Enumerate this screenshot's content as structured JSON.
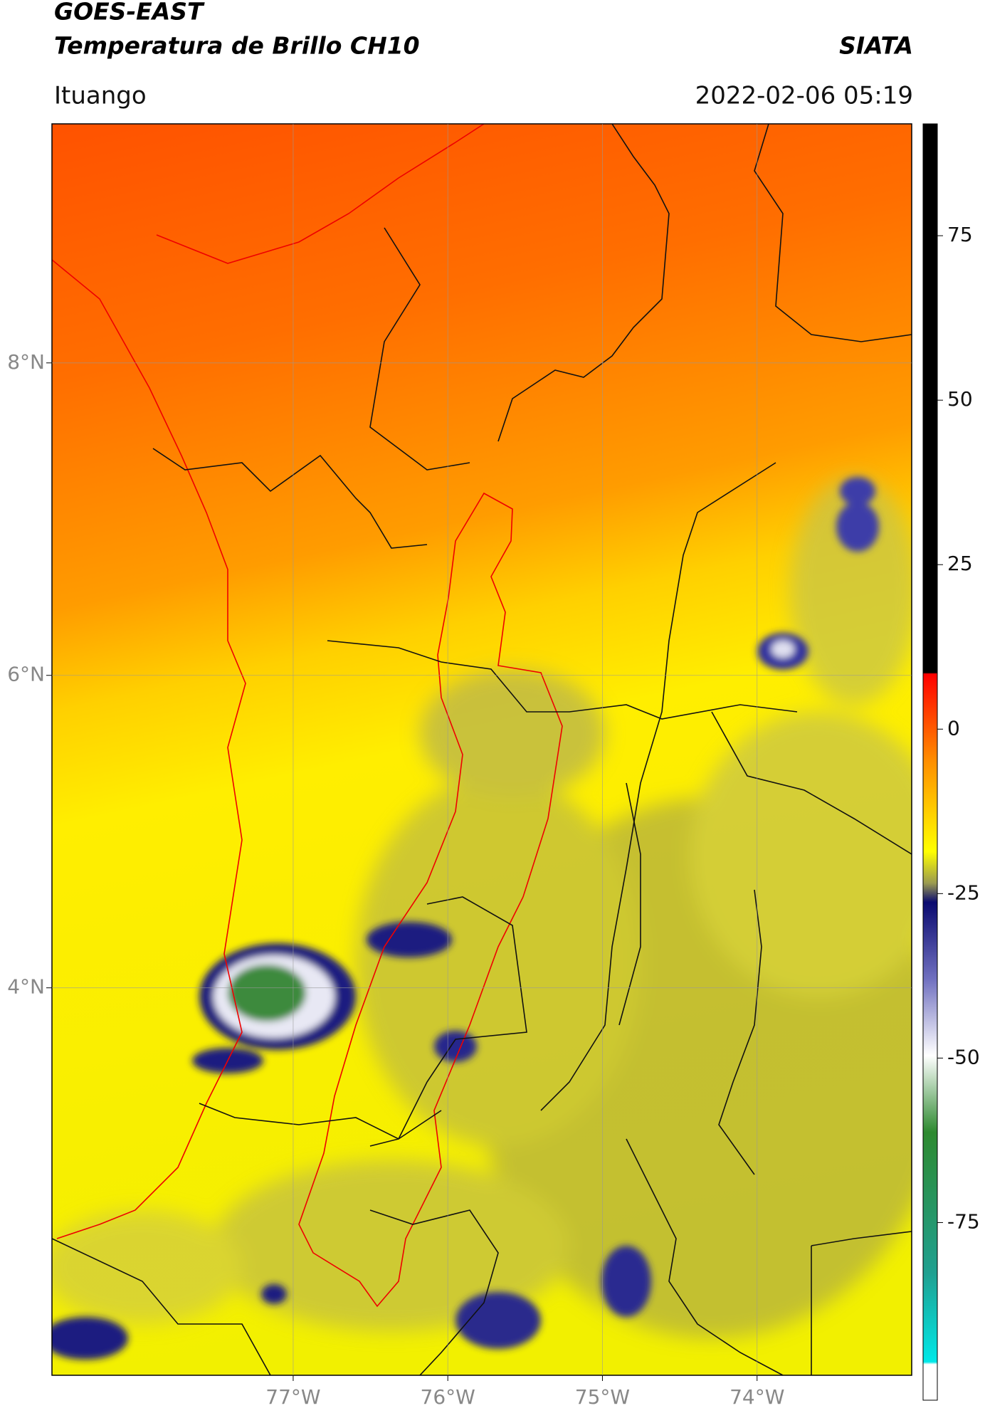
{
  "header": {
    "title_line1": "GOES-EAST",
    "title_line2": "Temperatura de Brillo CH10",
    "brand": "SIATA",
    "location": "Ituango",
    "datetime": "2022-02-06 05:19"
  },
  "map": {
    "xlim": [
      -78.56,
      -73.0
    ],
    "ylim": [
      1.52,
      9.53
    ],
    "lat_ticks": [
      {
        "value": 8,
        "label": "8°N"
      },
      {
        "value": 6,
        "label": "6°N"
      },
      {
        "value": 4,
        "label": "4°N"
      }
    ],
    "lon_ticks": [
      {
        "value": -77,
        "label": "77°W"
      },
      {
        "value": -76,
        "label": "76°W"
      },
      {
        "value": -75,
        "label": "75°W"
      },
      {
        "value": -74,
        "label": "74°W"
      }
    ]
  },
  "colorbar": {
    "range": [
      -102,
      92
    ],
    "ticks": [
      75,
      50,
      25,
      0,
      -25,
      -50,
      -75
    ]
  }
}
